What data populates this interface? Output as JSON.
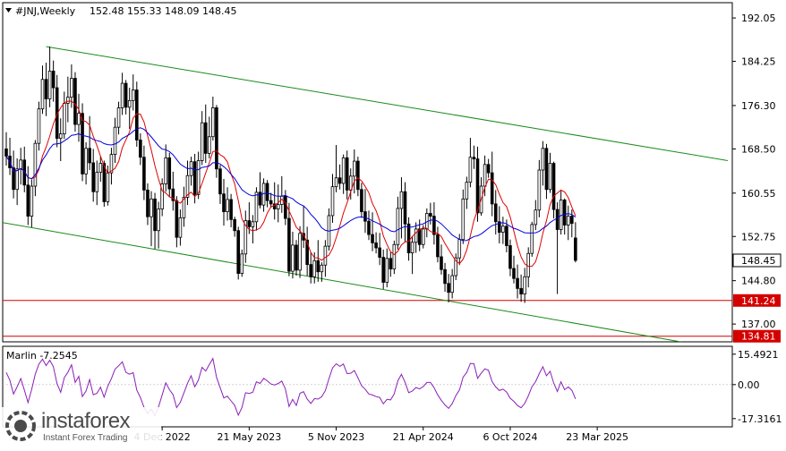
{
  "header": {
    "symbol": "#JNJ,Weekly",
    "ohlc": "152.48 155.33 148.09 148.45"
  },
  "indicator": {
    "label": "Marlin -7.2545",
    "axis_labels": [
      "15.4921",
      "0.00",
      "-17.3161"
    ]
  },
  "watermark": {
    "name": "instaforex",
    "tagline": "Instant Forex Trading"
  },
  "chart_data": [
    {
      "type": "candlestick",
      "ylim": [
        133.8,
        194.8
      ],
      "yticks": [
        192.05,
        184.25,
        176.3,
        168.5,
        160.55,
        152.75,
        144.8,
        137.0
      ],
      "ytick_labels": [
        "192.05",
        "184.25",
        "176.30",
        "168.50",
        "160.55",
        "152.75",
        "144.80",
        "137.00"
      ],
      "x_tick_labels": [
        "4 Dec 2022",
        "21 May 2023",
        "5 Nov 2023",
        "21 Apr 2024",
        "6 Oct 2024",
        "23 Mar 2025"
      ],
      "x_tick_bar_index": [
        43,
        67,
        91,
        115,
        139,
        163
      ],
      "current_price": 148.45,
      "levels": [
        {
          "value": 141.24,
          "label": "141.24",
          "color": "#d40000"
        },
        {
          "value": 134.81,
          "label": "134.81",
          "color": "#d40000"
        }
      ],
      "channel_lines": [
        {
          "color": "#1a8a1a",
          "from": [
            11,
            186.9
          ],
          "to": [
            199,
            166.4
          ]
        },
        {
          "color": "#1a8a1a",
          "from": [
            -4,
            155.6
          ],
          "to": [
            186,
            133.8
          ]
        }
      ],
      "moving_averages": [
        {
          "color": "#e00000",
          "period": 8
        },
        {
          "color": "#0000dd",
          "period": 30
        }
      ],
      "candles": [
        [
          168.5,
          171.5,
          165.5,
          167.2
        ],
        [
          167.2,
          170.5,
          163.8,
          165.1
        ],
        [
          165.1,
          168.2,
          159.6,
          161.2
        ],
        [
          161.2,
          166.8,
          158.4,
          164.9
        ],
        [
          164.9,
          168.7,
          162.1,
          166.5
        ],
        [
          166.5,
          168.9,
          160.7,
          162.0
        ],
        [
          162.0,
          165.4,
          154.8,
          156.4
        ],
        [
          156.4,
          163.0,
          154.4,
          161.8
        ],
        [
          161.8,
          170.1,
          160.0,
          169.5
        ],
        [
          169.5,
          177.0,
          168.2,
          175.7
        ],
        [
          175.7,
          183.5,
          174.8,
          181.0
        ],
        [
          181.0,
          184.0,
          174.4,
          177.5
        ],
        [
          177.5,
          186.9,
          176.0,
          182.5
        ],
        [
          182.5,
          184.4,
          177.0,
          179.5
        ],
        [
          179.5,
          181.8,
          168.8,
          170.4
        ],
        [
          170.4,
          174.0,
          166.3,
          171.2
        ],
        [
          171.2,
          178.8,
          170.3,
          176.7
        ],
        [
          176.7,
          181.5,
          173.3,
          177.8
        ],
        [
          177.8,
          183.7,
          175.9,
          181.2
        ],
        [
          181.2,
          182.3,
          171.6,
          172.9
        ],
        [
          172.9,
          178.4,
          169.8,
          174.9
        ],
        [
          174.9,
          176.7,
          162.7,
          164.0
        ],
        [
          164.0,
          169.7,
          162.1,
          168.6
        ],
        [
          168.6,
          174.4,
          164.7,
          166.0
        ],
        [
          166.0,
          168.5,
          159.0,
          160.8
        ],
        [
          160.8,
          166.4,
          158.4,
          164.3
        ],
        [
          164.3,
          167.2,
          162.6,
          165.9
        ],
        [
          165.9,
          166.4,
          158.1,
          159.0
        ],
        [
          159.0,
          165.5,
          158.3,
          164.2
        ],
        [
          164.2,
          168.7,
          162.1,
          167.5
        ],
        [
          167.5,
          174.1,
          166.0,
          172.4
        ],
        [
          172.4,
          177.0,
          171.1,
          175.9
        ],
        [
          175.9,
          182.2,
          174.6,
          180.3
        ],
        [
          180.3,
          180.9,
          174.7,
          176.0
        ],
        [
          176.0,
          179.5,
          172.1,
          177.2
        ],
        [
          177.2,
          181.9,
          175.4,
          179.1
        ],
        [
          179.1,
          180.6,
          168.9,
          170.1
        ],
        [
          170.1,
          171.3,
          165.6,
          167.0
        ],
        [
          167.0,
          169.1,
          159.3,
          161.1
        ],
        [
          161.1,
          162.3,
          154.8,
          156.3
        ],
        [
          156.3,
          160.9,
          151.0,
          159.5
        ],
        [
          159.5,
          160.6,
          150.5,
          153.8
        ],
        [
          153.8,
          159.0,
          150.6,
          157.7
        ],
        [
          157.7,
          163.2,
          156.4,
          162.2
        ],
        [
          162.2,
          169.3,
          160.8,
          166.9
        ],
        [
          166.9,
          167.8,
          159.9,
          161.3
        ],
        [
          161.3,
          164.4,
          157.4,
          159.2
        ],
        [
          159.2,
          160.0,
          150.8,
          152.6
        ],
        [
          152.6,
          157.6,
          151.1,
          156.1
        ],
        [
          156.1,
          161.7,
          154.5,
          159.8
        ],
        [
          159.8,
          166.4,
          158.4,
          163.7
        ],
        [
          163.7,
          167.1,
          161.9,
          166.2
        ],
        [
          166.2,
          167.6,
          158.7,
          160.3
        ],
        [
          160.3,
          168.0,
          159.5,
          166.4
        ],
        [
          166.4,
          175.3,
          165.6,
          173.2
        ],
        [
          173.2,
          176.5,
          166.0,
          167.7
        ],
        [
          167.7,
          174.3,
          166.8,
          170.7
        ],
        [
          170.7,
          177.9,
          170.0,
          175.9
        ],
        [
          175.9,
          176.4,
          163.3,
          164.9
        ],
        [
          164.9,
          165.6,
          158.6,
          160.4
        ],
        [
          160.4,
          163.1,
          154.7,
          157.2
        ],
        [
          157.2,
          161.6,
          155.6,
          159.4
        ],
        [
          159.4,
          160.4,
          154.4,
          155.8
        ],
        [
          155.8,
          156.3,
          152.7,
          153.8
        ],
        [
          153.8,
          154.5,
          145.0,
          146.1
        ],
        [
          146.1,
          150.4,
          145.5,
          149.6
        ],
        [
          149.6,
          157.4,
          148.0,
          155.6
        ],
        [
          155.6,
          158.9,
          153.2,
          154.5
        ],
        [
          154.5,
          156.6,
          151.5,
          155.4
        ],
        [
          155.4,
          161.6,
          153.8,
          160.7
        ],
        [
          160.7,
          164.3,
          157.8,
          158.4
        ],
        [
          158.4,
          163.2,
          157.2,
          162.3
        ],
        [
          162.3,
          162.9,
          158.0,
          159.2
        ],
        [
          159.2,
          160.6,
          157.9,
          158.6
        ],
        [
          158.6,
          162.5,
          155.8,
          157.7
        ],
        [
          157.7,
          162.1,
          155.3,
          158.5
        ],
        [
          158.5,
          163.6,
          157.0,
          160.0
        ],
        [
          160.0,
          161.1,
          154.8,
          156.0
        ],
        [
          156.0,
          158.8,
          145.6,
          146.5
        ],
        [
          146.5,
          153.6,
          145.2,
          151.2
        ],
        [
          151.2,
          152.1,
          145.7,
          146.7
        ],
        [
          146.7,
          154.6,
          145.3,
          153.3
        ],
        [
          153.3,
          158.2,
          150.7,
          152.1
        ],
        [
          152.1,
          154.5,
          145.7,
          147.7
        ],
        [
          147.7,
          149.9,
          144.3,
          145.5
        ],
        [
          145.5,
          149.9,
          144.3,
          148.4
        ],
        [
          148.4,
          152.1,
          144.6,
          146.4
        ],
        [
          146.4,
          148.1,
          144.6,
          147.6
        ],
        [
          147.6,
          152.1,
          145.5,
          151.0
        ],
        [
          151.0,
          157.8,
          150.2,
          156.5
        ],
        [
          156.5,
          164.0,
          155.2,
          161.7
        ],
        [
          161.7,
          169.2,
          160.7,
          163.3
        ],
        [
          163.3,
          165.7,
          161.2,
          162.3
        ],
        [
          162.3,
          167.5,
          160.4,
          166.9
        ],
        [
          166.9,
          168.2,
          159.4,
          161.1
        ],
        [
          161.1,
          165.0,
          159.4,
          163.6
        ],
        [
          163.6,
          168.4,
          160.5,
          166.3
        ],
        [
          166.3,
          167.1,
          160.0,
          161.2
        ],
        [
          161.2,
          162.4,
          156.1,
          157.2
        ],
        [
          157.2,
          161.3,
          153.4,
          155.5
        ],
        [
          155.5,
          157.4,
          152.1,
          153.1
        ],
        [
          153.1,
          157.1,
          150.1,
          151.6
        ],
        [
          151.6,
          153.5,
          149.7,
          150.7
        ],
        [
          150.7,
          153.4,
          147.6,
          149.0
        ],
        [
          149.0,
          150.4,
          143.3,
          144.5
        ],
        [
          144.5,
          150.6,
          143.6,
          148.8
        ],
        [
          148.8,
          149.9,
          145.5,
          146.9
        ],
        [
          146.9,
          152.0,
          146.0,
          151.3
        ],
        [
          151.3,
          159.9,
          150.4,
          157.8
        ],
        [
          157.8,
          163.4,
          152.4,
          160.8
        ],
        [
          160.8,
          162.5,
          151.7,
          155.0
        ],
        [
          155.0,
          156.2,
          148.4,
          149.8
        ],
        [
          149.8,
          152.8,
          146.0,
          151.7
        ],
        [
          151.7,
          155.3,
          149.8,
          154.1
        ],
        [
          154.1,
          155.8,
          150.1,
          151.3
        ],
        [
          151.3,
          154.8,
          150.6,
          154.1
        ],
        [
          154.1,
          157.8,
          152.6,
          156.9
        ],
        [
          156.9,
          158.8,
          154.9,
          156.4
        ],
        [
          156.4,
          158.9,
          151.3,
          153.1
        ],
        [
          153.1,
          154.5,
          148.1,
          149.1
        ],
        [
          149.1,
          151.3,
          145.9,
          146.8
        ],
        [
          146.8,
          148.0,
          142.8,
          144.3
        ],
        [
          144.3,
          146.0,
          140.9,
          142.7
        ],
        [
          142.7,
          146.9,
          141.6,
          145.7
        ],
        [
          145.7,
          149.7,
          144.9,
          148.9
        ],
        [
          148.9,
          153.2,
          147.6,
          152.2
        ],
        [
          152.2,
          161.2,
          151.4,
          159.5
        ],
        [
          159.5,
          163.5,
          157.7,
          162.5
        ],
        [
          162.5,
          170.5,
          161.6,
          167.0
        ],
        [
          167.0,
          169.1,
          164.9,
          166.7
        ],
        [
          166.7,
          168.9,
          155.4,
          157.0
        ],
        [
          157.0,
          163.4,
          156.5,
          161.8
        ],
        [
          161.8,
          167.3,
          160.0,
          165.7
        ],
        [
          165.7,
          166.7,
          163.3,
          164.2
        ],
        [
          164.2,
          168.0,
          156.4,
          158.6
        ],
        [
          158.6,
          161.1,
          153.1,
          155.4
        ],
        [
          155.4,
          158.2,
          151.5,
          153.5
        ],
        [
          153.5,
          156.3,
          151.4,
          154.6
        ],
        [
          154.6,
          155.8,
          149.9,
          151.1
        ],
        [
          151.1,
          152.2,
          145.6,
          147.0
        ],
        [
          147.0,
          149.3,
          144.3,
          145.2
        ],
        [
          145.2,
          147.7,
          141.6,
          143.4
        ],
        [
          143.4,
          145.9,
          141.0,
          142.4
        ],
        [
          142.4,
          147.1,
          140.8,
          145.5
        ],
        [
          145.5,
          150.8,
          143.6,
          149.7
        ],
        [
          149.7,
          155.4,
          149.1,
          154.9
        ],
        [
          154.9,
          159.3,
          153.9,
          157.5
        ],
        [
          157.5,
          166.5,
          156.2,
          164.7
        ],
        [
          164.7,
          169.9,
          161.9,
          168.6
        ],
        [
          168.6,
          169.4,
          159.5,
          161.2
        ],
        [
          161.2,
          167.8,
          160.6,
          165.9
        ],
        [
          165.9,
          166.2,
          156.0,
          157.6
        ],
        [
          157.6,
          158.9,
          142.4,
          154.0
        ],
        [
          154.0,
          160.9,
          153.1,
          159.3
        ],
        [
          159.3,
          159.6,
          153.1,
          154.8
        ],
        [
          154.8,
          158.3,
          152.1,
          156.4
        ],
        [
          156.4,
          157.6,
          152.6,
          155.1
        ],
        [
          152.48,
          155.33,
          148.09,
          148.45
        ]
      ]
    },
    {
      "type": "line",
      "ylim": [
        -21.5,
        19.5
      ],
      "yticks": [
        15.4921,
        0.0,
        -17.3161
      ],
      "series": [
        {
          "name": "Marlin",
          "color": "#8a1fb8",
          "values": [
            6.2,
            2.1,
            -4.8,
            -1.2,
            3.1,
            -2.9,
            -9.1,
            -2.6,
            5.3,
            10.4,
            13.0,
            9.7,
            12.4,
            9.1,
            0.5,
            -3.9,
            3.5,
            6.3,
            10.1,
            1.1,
            4.2,
            -6.1,
            -3.3,
            2.6,
            -5.2,
            -4.4,
            -1.3,
            -6.4,
            -0.8,
            3.0,
            7.9,
            9.6,
            11.6,
            6.2,
            5.3,
            6.1,
            -2.8,
            -6.5,
            -11.6,
            -14.7,
            -12.5,
            -15.9,
            -11.3,
            -5.2,
            0.9,
            -2.6,
            -5.1,
            -11.7,
            -9.0,
            -4.3,
            0.7,
            4.5,
            -1.1,
            2.3,
            8.8,
            6.9,
            10.2,
            13.3,
            3.7,
            -1.5,
            -6.8,
            -5.9,
            -8.3,
            -10.5,
            -15.6,
            -11.6,
            -4.1,
            -4.5,
            -3.9,
            1.4,
            0.6,
            3.2,
            1.9,
            0.3,
            -0.2,
            0.6,
            1.8,
            -2.2,
            -11.1,
            -7.5,
            -10.6,
            -4.4,
            -3.6,
            -7.3,
            -9.6,
            -7.1,
            -7.4,
            -6.2,
            -3.1,
            2.9,
            8.5,
            10.6,
            9.3,
            10.5,
            5.6,
            5.8,
            7.2,
            3.5,
            -0.6,
            -2.3,
            -4.8,
            -5.3,
            -6.1,
            -6.5,
            -9.8,
            -7.5,
            -7.8,
            -4.8,
            1.9,
            5.2,
            1.2,
            -4.1,
            -3.3,
            -1.5,
            -2.2,
            -1.0,
            1.1,
            1.1,
            -1.6,
            -5.2,
            -8.0,
            -10.3,
            -12.1,
            -9.7,
            -5.6,
            -2.7,
            3.8,
            6.2,
            10.8,
            10.6,
            3.2,
            5.8,
            8.0,
            7.3,
            1.5,
            -1.2,
            -3.0,
            -2.3,
            -3.8,
            -6.9,
            -8.5,
            -10.6,
            -11.8,
            -9.6,
            -5.7,
            -1.0,
            1.5,
            5.6,
            9.1,
            4.5,
            6.8,
            0.8,
            -3.5,
            1.4,
            -2.6,
            -1.2,
            -2.9,
            -7.3
          ]
        }
      ]
    }
  ]
}
